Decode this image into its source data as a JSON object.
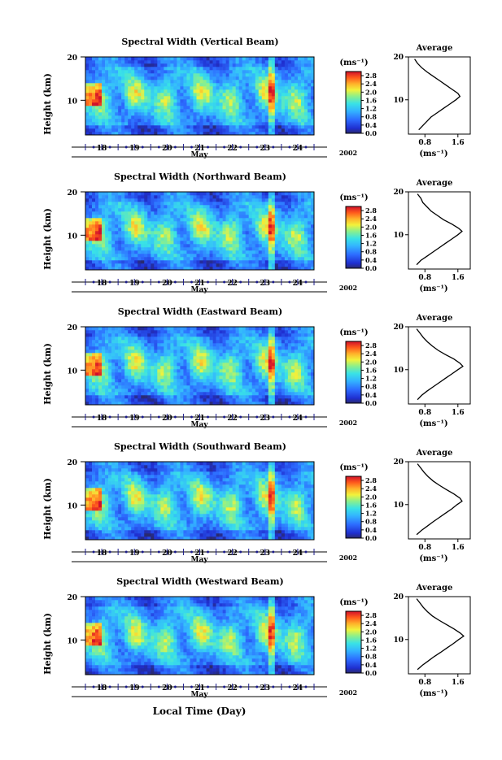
{
  "figure": {
    "xlabel": "Local Time (Day)"
  },
  "chart_data": [
    {
      "type": "heatmap",
      "title": "Spectral Width (Vertical Beam)",
      "ylabel": "Height (km)",
      "y_ticks": [
        "20",
        "10"
      ],
      "x_ticks": [
        "18",
        "19",
        "20",
        "21",
        "22",
        "23",
        "24"
      ],
      "x_axis_label": "May",
      "year": "2002",
      "colorbar_label": "(ms⁻¹)",
      "colorbar_ticks": [
        "2.8",
        "2.4",
        "2.0",
        "1.6",
        "1.2",
        "0.8",
        "0.4",
        "0.0"
      ],
      "colorbar_range": [
        0.0,
        3.0
      ],
      "xlim": [
        17.5,
        24.5
      ],
      "ylim": [
        2,
        20
      ],
      "profile": {
        "title": "Average",
        "x_ticks": [
          "0.8",
          "1.6"
        ],
        "xlabel": "(ms⁻¹)",
        "y_ticks": [
          "20",
          "10"
        ],
        "xlim": [
          0.4,
          1.9
        ],
        "points": [
          [
            0.65,
            3
          ],
          [
            0.75,
            4
          ],
          [
            0.85,
            5
          ],
          [
            0.95,
            6
          ],
          [
            1.1,
            7
          ],
          [
            1.25,
            8
          ],
          [
            1.4,
            9
          ],
          [
            1.55,
            10
          ],
          [
            1.65,
            10.8
          ],
          [
            1.6,
            11.5
          ],
          [
            1.45,
            12.5
          ],
          [
            1.3,
            13.5
          ],
          [
            1.15,
            14.5
          ],
          [
            1.0,
            15.5
          ],
          [
            0.85,
            16.5
          ],
          [
            0.72,
            17.5
          ],
          [
            0.62,
            18.5
          ],
          [
            0.55,
            19.5
          ]
        ]
      }
    },
    {
      "type": "heatmap",
      "title": "Spectral Width (Northward Beam)",
      "ylabel": "Height (km)",
      "y_ticks": [
        "20",
        "10"
      ],
      "x_ticks": [
        "18",
        "19",
        "20",
        "21",
        "22",
        "23",
        "24"
      ],
      "x_axis_label": "May",
      "year": "2002",
      "colorbar_label": "(ms⁻¹)",
      "colorbar_ticks": [
        "2.8",
        "2.4",
        "2.0",
        "1.6",
        "1.2",
        "0.8",
        "0.4",
        "0.0"
      ],
      "colorbar_range": [
        0.0,
        3.0
      ],
      "xlim": [
        17.5,
        24.5
      ],
      "ylim": [
        2,
        20
      ],
      "profile": {
        "title": "Average",
        "x_ticks": [
          "0.8",
          "1.6"
        ],
        "xlabel": "(ms⁻¹)",
        "y_ticks": [
          "20",
          "10"
        ],
        "xlim": [
          0.4,
          1.9
        ],
        "points": [
          [
            0.6,
            3
          ],
          [
            0.7,
            4
          ],
          [
            0.85,
            5
          ],
          [
            1.0,
            6
          ],
          [
            1.15,
            7
          ],
          [
            1.3,
            8
          ],
          [
            1.45,
            9
          ],
          [
            1.6,
            10
          ],
          [
            1.7,
            10.8
          ],
          [
            1.62,
            11.5
          ],
          [
            1.45,
            12.5
          ],
          [
            1.25,
            13.5
          ],
          [
            1.1,
            14.5
          ],
          [
            0.95,
            15.5
          ],
          [
            0.85,
            16.5
          ],
          [
            0.75,
            17.5
          ],
          [
            0.7,
            18.5
          ],
          [
            0.62,
            19.5
          ]
        ]
      }
    },
    {
      "type": "heatmap",
      "title": "Spectral Width (Eastward Beam)",
      "ylabel": "Height (km)",
      "y_ticks": [
        "20",
        "10"
      ],
      "x_ticks": [
        "18",
        "19",
        "20",
        "21",
        "22",
        "23",
        "24"
      ],
      "x_axis_label": "May",
      "year": "2002",
      "colorbar_label": "(ms⁻¹)",
      "colorbar_ticks": [
        "2.8",
        "2.4",
        "2.0",
        "1.6",
        "1.2",
        "0.8",
        "0.4",
        "0.0"
      ],
      "colorbar_range": [
        0.0,
        3.0
      ],
      "xlim": [
        17.5,
        24.5
      ],
      "ylim": [
        2,
        20
      ],
      "profile": {
        "title": "Average",
        "x_ticks": [
          "0.8",
          "1.6"
        ],
        "xlabel": "(ms⁻¹)",
        "y_ticks": [
          "20",
          "10"
        ],
        "xlim": [
          0.4,
          1.9
        ],
        "points": [
          [
            0.62,
            3
          ],
          [
            0.72,
            4
          ],
          [
            0.85,
            5
          ],
          [
            1.0,
            6
          ],
          [
            1.15,
            7
          ],
          [
            1.3,
            8
          ],
          [
            1.45,
            9
          ],
          [
            1.6,
            10
          ],
          [
            1.72,
            10.8
          ],
          [
            1.65,
            11.5
          ],
          [
            1.5,
            12.5
          ],
          [
            1.3,
            13.5
          ],
          [
            1.12,
            14.5
          ],
          [
            0.98,
            15.5
          ],
          [
            0.86,
            16.5
          ],
          [
            0.76,
            17.5
          ],
          [
            0.68,
            18.5
          ],
          [
            0.6,
            19.5
          ]
        ]
      }
    },
    {
      "type": "heatmap",
      "title": "Spectral Width (Southward Beam)",
      "ylabel": "Height (km)",
      "y_ticks": [
        "20",
        "10"
      ],
      "x_ticks": [
        "18",
        "19",
        "20",
        "21",
        "22",
        "23",
        "24"
      ],
      "x_axis_label": "May",
      "year": "2002",
      "colorbar_label": "(ms⁻¹)",
      "colorbar_ticks": [
        "2.8",
        "2.4",
        "2.0",
        "1.6",
        "1.2",
        "0.8",
        "0.4",
        "0.0"
      ],
      "colorbar_range": [
        0.0,
        3.0
      ],
      "xlim": [
        17.5,
        24.5
      ],
      "ylim": [
        2,
        20
      ],
      "profile": {
        "title": "Average",
        "x_ticks": [
          "0.8",
          "1.6"
        ],
        "xlabel": "(ms⁻¹)",
        "y_ticks": [
          "20",
          "10"
        ],
        "xlim": [
          0.4,
          1.9
        ],
        "points": [
          [
            0.6,
            3
          ],
          [
            0.72,
            4
          ],
          [
            0.86,
            5
          ],
          [
            1.0,
            6
          ],
          [
            1.15,
            7
          ],
          [
            1.3,
            8
          ],
          [
            1.45,
            9
          ],
          [
            1.58,
            10
          ],
          [
            1.7,
            10.8
          ],
          [
            1.65,
            11.5
          ],
          [
            1.5,
            12.5
          ],
          [
            1.32,
            13.5
          ],
          [
            1.15,
            14.5
          ],
          [
            1.0,
            15.5
          ],
          [
            0.88,
            16.5
          ],
          [
            0.78,
            17.5
          ],
          [
            0.7,
            18.5
          ],
          [
            0.62,
            19.5
          ]
        ]
      }
    },
    {
      "type": "heatmap",
      "title": "Spectral Width (Westward Beam)",
      "ylabel": "Height (km)",
      "y_ticks": [
        "20",
        "10"
      ],
      "x_ticks": [
        "18",
        "19",
        "20",
        "21",
        "22",
        "23",
        "24"
      ],
      "x_axis_label": "May",
      "year": "2002",
      "colorbar_label": "(ms⁻¹)",
      "colorbar_ticks": [
        "2.8",
        "2.4",
        "2.0",
        "1.6",
        "1.2",
        "0.8",
        "0.4",
        "0.0"
      ],
      "colorbar_range": [
        0.0,
        3.0
      ],
      "xlim": [
        17.5,
        24.5
      ],
      "ylim": [
        2,
        20
      ],
      "profile": {
        "title": "Average",
        "x_ticks": [
          "0.8",
          "1.6"
        ],
        "xlabel": "(ms⁻¹)",
        "y_ticks": [
          "20",
          "10"
        ],
        "xlim": [
          0.4,
          1.9
        ],
        "points": [
          [
            0.62,
            3
          ],
          [
            0.74,
            4
          ],
          [
            0.88,
            5
          ],
          [
            1.02,
            6
          ],
          [
            1.18,
            7
          ],
          [
            1.33,
            8
          ],
          [
            1.48,
            9
          ],
          [
            1.62,
            10
          ],
          [
            1.74,
            10.8
          ],
          [
            1.66,
            11.5
          ],
          [
            1.5,
            12.5
          ],
          [
            1.32,
            13.5
          ],
          [
            1.14,
            14.5
          ],
          [
            0.98,
            15.5
          ],
          [
            0.86,
            16.5
          ],
          [
            0.76,
            17.5
          ],
          [
            0.68,
            18.5
          ],
          [
            0.6,
            19.5
          ]
        ]
      }
    }
  ]
}
